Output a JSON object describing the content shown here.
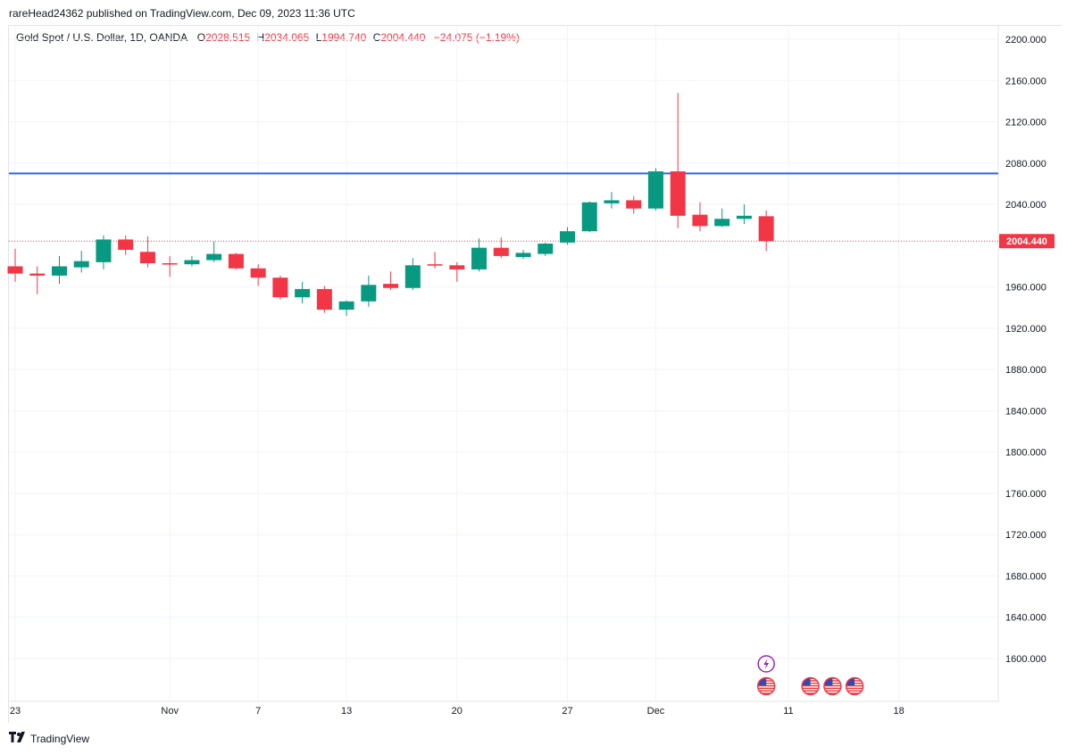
{
  "header": {
    "published": "rareHead24362 published on TradingView.com, Dec 09, 2023 11:36 UTC"
  },
  "legend": {
    "symbol": "Gold Spot / U.S. Dollar, 1D, OANDA",
    "o_label": "O",
    "o_value": "2028.515",
    "h_label": "H",
    "h_value": "2034.065",
    "l_label": "L",
    "l_value": "1994.740",
    "c_label": "C",
    "c_value": "2004.440",
    "change": "−24.075 (−1.19%)"
  },
  "brand": {
    "name": "TradingView"
  },
  "colors": {
    "up": "#089981",
    "down": "#f23645",
    "hline": "#2962ff",
    "grid": "#f0f3fa",
    "axis_text": "#131722"
  },
  "chart_data": {
    "type": "candlestick",
    "y_ticks": [
      "2200.000",
      "2160.000",
      "2120.000",
      "2080.000",
      "2040.000",
      "1960.000",
      "1920.000",
      "1880.000",
      "1840.000",
      "1800.000",
      "1760.000",
      "1720.000",
      "1680.000",
      "1640.000",
      "1600.000"
    ],
    "ylim": [
      1555,
      2202
    ],
    "x_ticks": [
      {
        "label": "23",
        "date": "2023-10-23"
      },
      {
        "label": "Nov",
        "date": "2023-11-01"
      },
      {
        "label": "7",
        "date": "2023-11-07"
      },
      {
        "label": "13",
        "date": "2023-11-13"
      },
      {
        "label": "20",
        "date": "2023-11-20"
      },
      {
        "label": "27",
        "date": "2023-11-27"
      },
      {
        "label": "Dec",
        "date": "2023-12-01"
      },
      {
        "label": "11",
        "date": "2023-12-11"
      },
      {
        "label": "18",
        "date": "2023-12-18"
      }
    ],
    "current_price": "2004.440",
    "horizontal_line": 2070,
    "candles": [
      {
        "date": "2023-10-23",
        "o": 1980,
        "h": 1997,
        "l": 1965,
        "c": 1973
      },
      {
        "date": "2023-10-24",
        "o": 1973,
        "h": 1980,
        "l": 1953,
        "c": 1971
      },
      {
        "date": "2023-10-25",
        "o": 1971,
        "h": 1990,
        "l": 1963,
        "c": 1980
      },
      {
        "date": "2023-10-26",
        "o": 1979,
        "h": 1995,
        "l": 1974,
        "c": 1985
      },
      {
        "date": "2023-10-27",
        "o": 1984,
        "h": 2010,
        "l": 1977,
        "c": 2006
      },
      {
        "date": "2023-10-30",
        "o": 2006,
        "h": 2010,
        "l": 1991,
        "c": 1996
      },
      {
        "date": "2023-10-31",
        "o": 1994,
        "h": 2009,
        "l": 1979,
        "c": 1983
      },
      {
        "date": "2023-11-01",
        "o": 1983,
        "h": 1990,
        "l": 1970,
        "c": 1982
      },
      {
        "date": "2023-11-02",
        "o": 1982,
        "h": 1990,
        "l": 1980,
        "c": 1986
      },
      {
        "date": "2023-11-03",
        "o": 1986,
        "h": 2004,
        "l": 1984,
        "c": 1992
      },
      {
        "date": "2023-11-06",
        "o": 1992,
        "h": 1993,
        "l": 1977,
        "c": 1978
      },
      {
        "date": "2023-11-07",
        "o": 1978,
        "h": 1982,
        "l": 1961,
        "c": 1969
      },
      {
        "date": "2023-11-08",
        "o": 1969,
        "h": 1971,
        "l": 1948,
        "c": 1950
      },
      {
        "date": "2023-11-09",
        "o": 1950,
        "h": 1965,
        "l": 1944,
        "c": 1958
      },
      {
        "date": "2023-11-10",
        "o": 1958,
        "h": 1961,
        "l": 1935,
        "c": 1938
      },
      {
        "date": "2023-11-13",
        "o": 1938,
        "h": 1947,
        "l": 1932,
        "c": 1946
      },
      {
        "date": "2023-11-14",
        "o": 1946,
        "h": 1971,
        "l": 1941,
        "c": 1962
      },
      {
        "date": "2023-11-15",
        "o": 1963,
        "h": 1975,
        "l": 1957,
        "c": 1959
      },
      {
        "date": "2023-11-16",
        "o": 1959,
        "h": 1988,
        "l": 1957,
        "c": 1981
      },
      {
        "date": "2023-11-17",
        "o": 1982,
        "h": 1994,
        "l": 1978,
        "c": 1981
      },
      {
        "date": "2023-11-20",
        "o": 1981,
        "h": 1984,
        "l": 1965,
        "c": 1977
      },
      {
        "date": "2023-11-21",
        "o": 1977,
        "h": 2007,
        "l": 1975,
        "c": 1998
      },
      {
        "date": "2023-11-22",
        "o": 1998,
        "h": 2008,
        "l": 1988,
        "c": 1990
      },
      {
        "date": "2023-11-23",
        "o": 1989,
        "h": 1996,
        "l": 1987,
        "c": 1993
      },
      {
        "date": "2023-11-24",
        "o": 1992,
        "h": 2003,
        "l": 1990,
        "c": 2002
      },
      {
        "date": "2023-11-27",
        "o": 2003,
        "h": 2018,
        "l": 2001,
        "c": 2014
      },
      {
        "date": "2023-11-28",
        "o": 2014,
        "h": 2043,
        "l": 2013,
        "c": 2042
      },
      {
        "date": "2023-11-29",
        "o": 2041,
        "h": 2052,
        "l": 2036,
        "c": 2044
      },
      {
        "date": "2023-11-30",
        "o": 2044,
        "h": 2048,
        "l": 2031,
        "c": 2036
      },
      {
        "date": "2023-12-01",
        "o": 2036,
        "h": 2075,
        "l": 2034,
        "c": 2072
      },
      {
        "date": "2023-12-04",
        "o": 2072,
        "h": 2148,
        "l": 2017,
        "c": 2029
      },
      {
        "date": "2023-12-05",
        "o": 2030,
        "h": 2042,
        "l": 2014,
        "c": 2019
      },
      {
        "date": "2023-12-06",
        "o": 2019,
        "h": 2036,
        "l": 2018,
        "c": 2026
      },
      {
        "date": "2023-12-07",
        "o": 2026,
        "h": 2040,
        "l": 2021,
        "c": 2029
      },
      {
        "date": "2023-12-08",
        "o": 2028.515,
        "h": 2034.065,
        "l": 1994.74,
        "c": 2004.44
      }
    ],
    "events": [
      {
        "date": "2023-12-08",
        "icon": "lightning-icon"
      },
      {
        "date": "2023-12-08",
        "icon": "us-flag-icon"
      },
      {
        "date": "2023-12-12",
        "icon": "us-flag-icon"
      },
      {
        "date": "2023-12-13",
        "icon": "us-flag-icon"
      },
      {
        "date": "2023-12-14",
        "icon": "us-flag-icon"
      }
    ]
  }
}
